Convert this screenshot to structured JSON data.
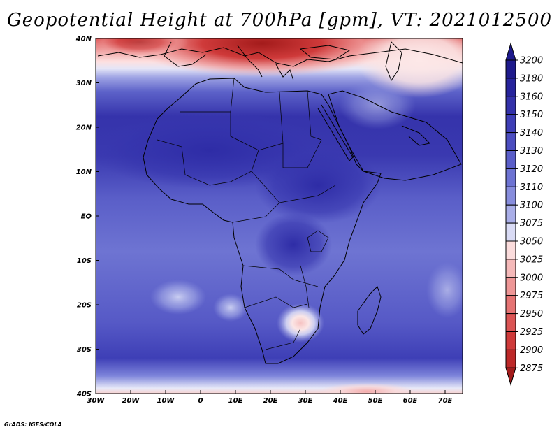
{
  "title": "Geopotential Height at 700hPa [gpm], VT: 2021012500",
  "credit": "GrADS: IGES/COLA",
  "lon_ticks": [
    {
      "label": "30W",
      "value": -30
    },
    {
      "label": "20W",
      "value": -20
    },
    {
      "label": "10W",
      "value": -10
    },
    {
      "label": "0",
      "value": 0
    },
    {
      "label": "10E",
      "value": 10
    },
    {
      "label": "20E",
      "value": 20
    },
    {
      "label": "30E",
      "value": 30
    },
    {
      "label": "40E",
      "value": 40
    },
    {
      "label": "50E",
      "value": 50
    },
    {
      "label": "60E",
      "value": 60
    },
    {
      "label": "70E",
      "value": 70
    }
  ],
  "lat_ticks": [
    {
      "label": "40N",
      "value": 40
    },
    {
      "label": "30N",
      "value": 30
    },
    {
      "label": "20N",
      "value": 20
    },
    {
      "label": "10N",
      "value": 10
    },
    {
      "label": "EQ",
      "value": 0
    },
    {
      "label": "10S",
      "value": -10
    },
    {
      "label": "20S",
      "value": -20
    },
    {
      "label": "30S",
      "value": -30
    },
    {
      "label": "40S",
      "value": -40
    }
  ],
  "colorbar": {
    "levels": [
      {
        "label": "3200",
        "color": "#1e1a8c"
      },
      {
        "label": "3180",
        "color": "#26239c"
      },
      {
        "label": "3160",
        "color": "#3331aa"
      },
      {
        "label": "3150",
        "color": "#3e3eb6"
      },
      {
        "label": "3140",
        "color": "#4b4dc0"
      },
      {
        "label": "3130",
        "color": "#5a5ec9"
      },
      {
        "label": "3120",
        "color": "#6d73d3"
      },
      {
        "label": "3110",
        "color": "#878ddd"
      },
      {
        "label": "3100",
        "color": "#a9aee8"
      },
      {
        "label": "3075",
        "color": "#d9dbf5"
      },
      {
        "label": "3050",
        "color": "#fbdcdc"
      },
      {
        "label": "3025",
        "color": "#f5b9b9"
      },
      {
        "label": "3000",
        "color": "#ee9696"
      },
      {
        "label": "2975",
        "color": "#e57373"
      },
      {
        "label": "2950",
        "color": "#db5454"
      },
      {
        "label": "2925",
        "color": "#cf3a3a"
      },
      {
        "label": "2900",
        "color": "#bd2828"
      },
      {
        "label": "2875",
        "color": "#a11b1b"
      }
    ]
  }
}
